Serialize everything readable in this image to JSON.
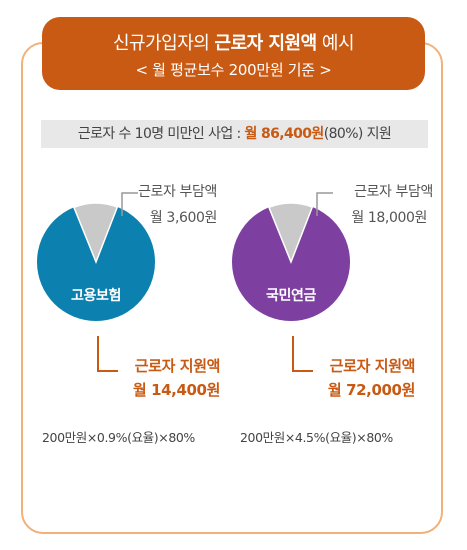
{
  "header": {
    "line1_prefix": "신규가입자의 ",
    "line1_bold": "근로자 지원액",
    "line1_suffix": " 예시",
    "line2": "< 월 평균보수 200만원 기준 >"
  },
  "support": {
    "prefix": "근로자 수 10명 미만인 사업 : ",
    "amount": "월 86,400원",
    "suffix": "(80%) 지원"
  },
  "colors": {
    "accent": "#c85a14",
    "border": "#f0b27a",
    "employment_pie": "#0c80ae",
    "pension_pie": "#7d3fa0",
    "burden_slice": "#c9c9c9"
  },
  "left": {
    "center_label": "고용보험",
    "burden_label": "근로자 부담액",
    "burden_amount": "월 3,600원",
    "support_label": "근로자 지원액",
    "support_amount": "월 14,400원",
    "formula": "200만원×0.9%(요율)×80%",
    "burden_share": 0.2
  },
  "right": {
    "center_label": "국민연금",
    "burden_label": "근로자 부담액",
    "burden_amount": "월 18,000원",
    "support_label": "근로자 지원액",
    "support_amount": "월 72,000원",
    "formula": "200만원×4.5%(요율)×80%",
    "burden_share": 0.2
  }
}
